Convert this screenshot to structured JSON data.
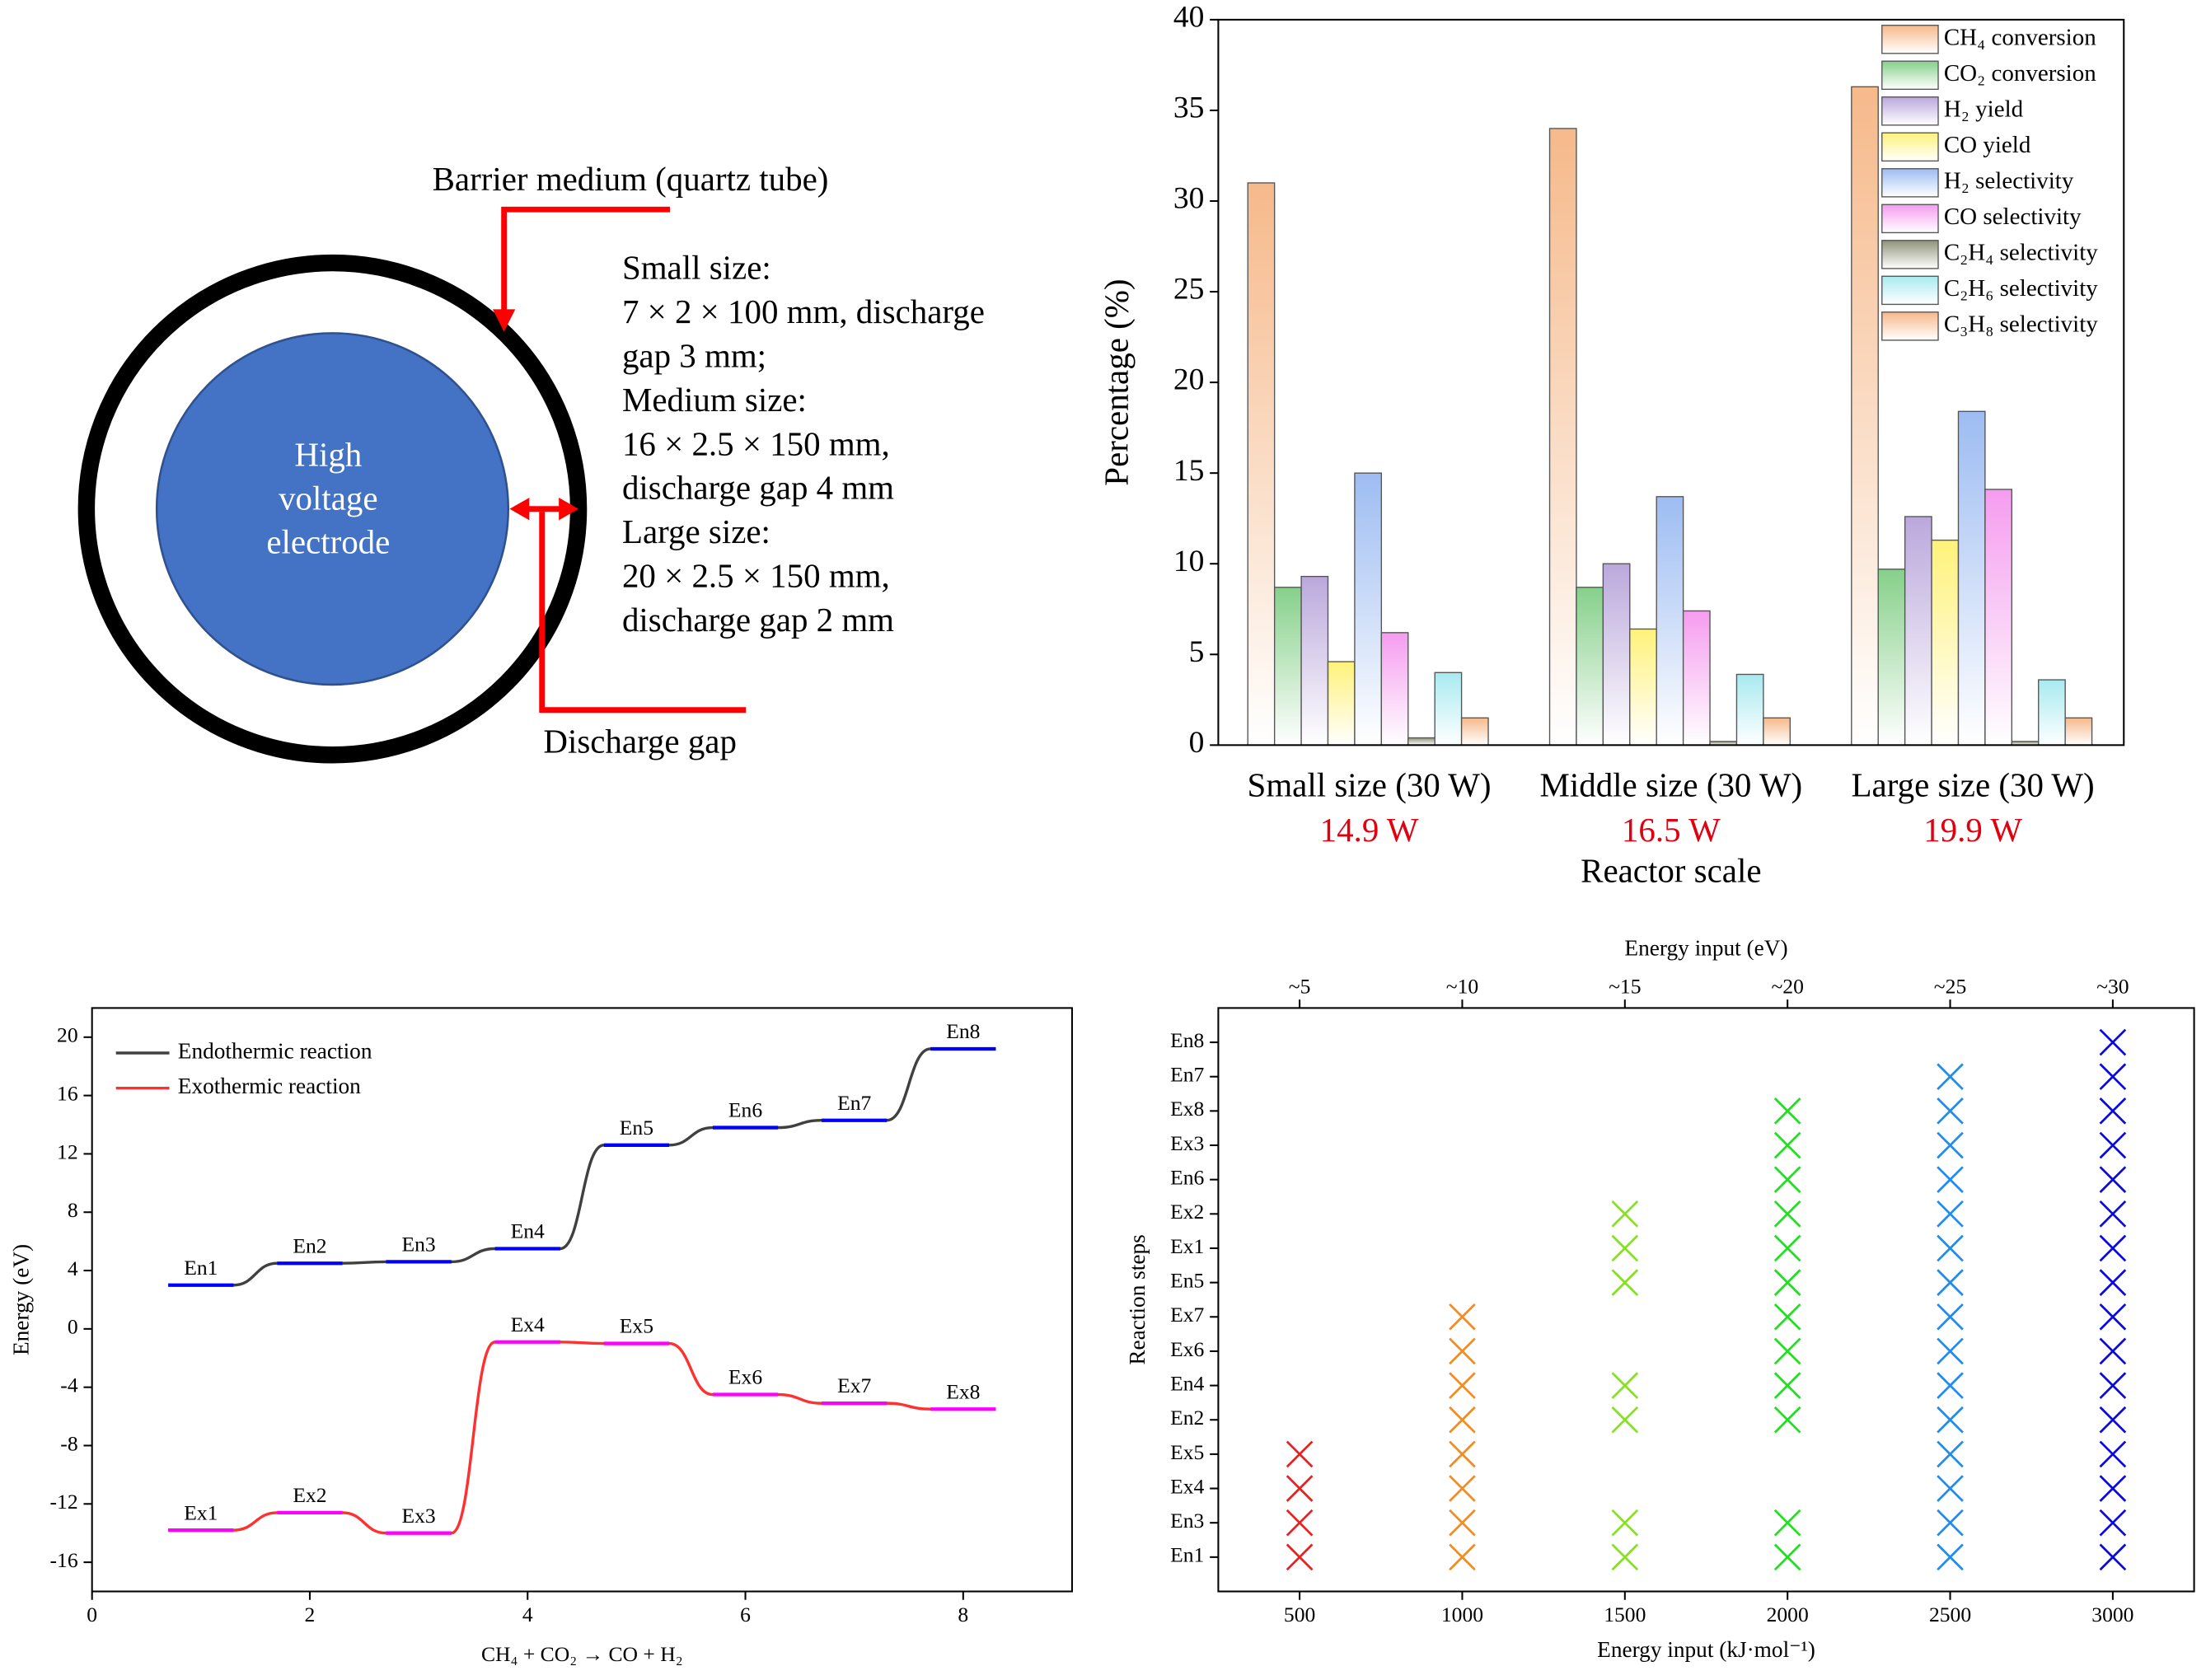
{
  "diagram": {
    "barrier_label": "Barrier medium (quartz tube)",
    "electrode_lines": [
      "High",
      "voltage",
      "electrode"
    ],
    "size_lines": [
      "Small size:",
      "7 × 2 × 100 mm, discharge",
      "gap 3 mm;",
      "Medium size:",
      "16 × 2.5 × 150 mm,",
      "discharge gap 4 mm",
      "Large size:",
      "20 × 2.5 × 150 mm,",
      "discharge gap 2 mm"
    ],
    "gap_label": "Discharge gap"
  },
  "chart_data": [
    {
      "type": "bar",
      "categories": [
        "Small size (30 W)",
        "Middle size (30 W)",
        "Large size (30 W)"
      ],
      "category_sublabels": [
        "14.9 W",
        "16.5 W",
        "19.9 W"
      ],
      "sublabel_color": "#e00010",
      "xlabel": "Reactor scale",
      "ylabel": "Percentage (%)",
      "ylim": [
        0,
        40
      ],
      "yticks": [
        0,
        5,
        10,
        15,
        20,
        25,
        30,
        35,
        40
      ],
      "series": [
        {
          "name": "CH₄ conversion",
          "color": "#f6b98a",
          "values": [
            31,
            34,
            36.3
          ]
        },
        {
          "name": "CO₂ conversion",
          "color": "#86d08a",
          "values": [
            8.7,
            8.7,
            9.7
          ]
        },
        {
          "name": "H₂ yield",
          "color": "#bba8dc",
          "values": [
            9.3,
            10,
            12.6
          ]
        },
        {
          "name": "CO yield",
          "color": "#fff27a",
          "values": [
            4.6,
            6.4,
            11.3
          ]
        },
        {
          "name": "H₂ selectivity",
          "color": "#9dbcf2",
          "values": [
            15,
            13.7,
            18.4
          ]
        },
        {
          "name": "CO selectivity",
          "color": "#f59cef",
          "values": [
            6.2,
            7.4,
            14.1
          ]
        },
        {
          "name": "C₂H₄ selectivity",
          "color": "#8f937a",
          "values": [
            0.4,
            0.2,
            0.2
          ]
        },
        {
          "name": "C₂H₆ selectivity",
          "color": "#a8eaf0",
          "values": [
            4,
            3.9,
            3.6
          ]
        },
        {
          "name": "C₃H₈ selectivity",
          "color": "#f6b98a",
          "values": [
            1.5,
            1.5,
            1.5
          ]
        }
      ]
    },
    {
      "type": "line",
      "xlabel": "CH₄ + CO₂ → CO + H₂",
      "ylabel": "Energy (eV)",
      "xlim": [
        0,
        9
      ],
      "xticks": [
        0,
        2,
        4,
        6,
        8
      ],
      "ylim": [
        -18,
        22
      ],
      "yticks": [
        -16,
        -12,
        -8,
        -4,
        0,
        4,
        8,
        12,
        16,
        20
      ],
      "legend": "upper left",
      "series": [
        {
          "name": "Endothermic reaction",
          "color": "#404040",
          "level_color": "#0000ff",
          "level_labels": [
            "En1",
            "En2",
            "En3",
            "En4",
            "En5",
            "En6",
            "En7",
            "En8"
          ],
          "x": [
            0.7,
            1.3,
            1.7,
            2.3,
            2.7,
            3.3,
            3.7,
            4.3,
            4.7,
            5.3,
            5.7,
            6.3,
            6.7,
            7.3,
            7.7,
            8.3
          ],
          "values": [
            3,
            3,
            4.5,
            4.5,
            4.6,
            4.6,
            5.5,
            5.5,
            12.6,
            12.6,
            13.8,
            13.8,
            14.3,
            14.3,
            19.2,
            19.2
          ]
        },
        {
          "name": "Exothermic reaction",
          "color": "#ff3030",
          "level_color": "#ff00ff",
          "level_labels": [
            "Ex1",
            "Ex2",
            "Ex3",
            "Ex4",
            "Ex5",
            "Ex6",
            "Ex7",
            "Ex8"
          ],
          "x": [
            0.7,
            1.3,
            1.7,
            2.3,
            2.7,
            3.3,
            3.7,
            4.3,
            4.7,
            5.3,
            5.7,
            6.3,
            6.7,
            7.3,
            7.7,
            8.3
          ],
          "values": [
            -13.8,
            -13.8,
            -12.6,
            -12.6,
            -14,
            -14,
            -0.9,
            -0.9,
            -1,
            -1,
            -4.5,
            -4.5,
            -5.1,
            -5.1,
            -5.5,
            -5.5
          ]
        }
      ]
    },
    {
      "type": "scatter",
      "xlabel": "Energy input (kJ·mol⁻¹)",
      "ylabel": "Reaction steps",
      "x2label": "Energy input (eV)",
      "xlim": [
        250,
        3250
      ],
      "xticks": [
        500,
        1000,
        1500,
        2000,
        2500,
        3000
      ],
      "x2lim": [
        2.5,
        32.5
      ],
      "x2ticks": [
        {
          "value": 5,
          "label": "~5"
        },
        {
          "value": 10,
          "label": "~10"
        },
        {
          "value": 15,
          "label": "~15"
        },
        {
          "value": 20,
          "label": "~20"
        },
        {
          "value": 25,
          "label": "~25"
        },
        {
          "value": 30,
          "label": "~30"
        }
      ],
      "categories": [
        "En1",
        "En3",
        "Ex4",
        "Ex5",
        "En2",
        "En4",
        "Ex6",
        "Ex7",
        "En5",
        "Ex1",
        "Ex2",
        "En6",
        "Ex3",
        "Ex8",
        "En7",
        "En8"
      ],
      "series": [
        {
          "color": "#e82020",
          "x": [
            500,
            500,
            500,
            500
          ],
          "values": [
            "En1",
            "En3",
            "Ex4",
            "Ex5"
          ]
        },
        {
          "color": "#f58a1f",
          "x": [
            1000,
            1000,
            1000,
            1000,
            1000,
            1000,
            1000,
            1000
          ],
          "values": [
            "En1",
            "En3",
            "Ex4",
            "Ex5",
            "En2",
            "En4",
            "Ex6",
            "Ex7"
          ]
        },
        {
          "color": "#86e21e",
          "x": [
            1500,
            1500,
            1500,
            1500,
            1500,
            1500,
            1500
          ],
          "values": [
            "En1",
            "En3",
            "En2",
            "En4",
            "En5",
            "Ex1",
            "Ex2"
          ]
        },
        {
          "color": "#1ee01e",
          "x": [
            2000,
            2000,
            2000,
            2000,
            2000,
            2000,
            2000,
            2000,
            2000,
            2000,
            2000,
            2000
          ],
          "values": [
            "En1",
            "En3",
            "En2",
            "En4",
            "Ex6",
            "Ex7",
            "En5",
            "Ex1",
            "Ex2",
            "En6",
            "Ex3",
            "Ex8"
          ]
        },
        {
          "color": "#1e8cf0",
          "x": [
            2500,
            2500,
            2500,
            2500,
            2500,
            2500,
            2500,
            2500,
            2500,
            2500,
            2500,
            2500,
            2500,
            2500,
            2500
          ],
          "values": [
            "En1",
            "En3",
            "Ex4",
            "Ex5",
            "En2",
            "En4",
            "Ex6",
            "Ex7",
            "En5",
            "Ex1",
            "Ex2",
            "En6",
            "Ex3",
            "Ex8",
            "En7"
          ]
        },
        {
          "color": "#0a0ae0",
          "x": [
            3000,
            3000,
            3000,
            3000,
            3000,
            3000,
            3000,
            3000,
            3000,
            3000,
            3000,
            3000,
            3000,
            3000,
            3000,
            3000
          ],
          "values": [
            "En1",
            "En3",
            "Ex4",
            "Ex5",
            "En2",
            "En4",
            "Ex6",
            "Ex7",
            "En5",
            "Ex1",
            "Ex2",
            "En6",
            "Ex3",
            "Ex8",
            "En7",
            "En8"
          ]
        }
      ]
    }
  ]
}
